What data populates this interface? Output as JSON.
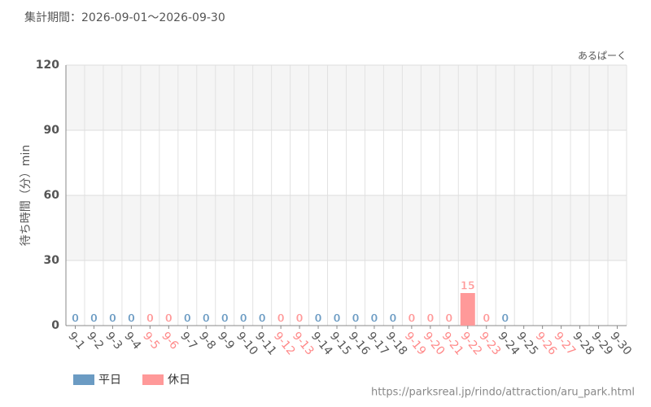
{
  "chart_data": {
    "type": "bar",
    "header": "集計期間：2026-09-01～2026-09-30",
    "source_name": "あるぱーく",
    "y_label": "待ち時間（分）min",
    "footer": "https://parksreal.jp/rindo/attraction/aru_park.html",
    "categories": [
      "9-1",
      "9-2",
      "9-3",
      "9-4",
      "9-5",
      "9-6",
      "9-7",
      "9-8",
      "9-9",
      "9-10",
      "9-11",
      "9-12",
      "9-13",
      "9-14",
      "9-15",
      "9-16",
      "9-17",
      "9-18",
      "9-19",
      "9-20",
      "9-21",
      "9-22",
      "9-23",
      "9-24",
      "9-25",
      "9-26",
      "9-27",
      "9-28",
      "9-29",
      "9-30"
    ],
    "category_label_colors": [
      "#555555",
      "#555555",
      "#555555",
      "#555555",
      "#ff8888",
      "#ff8888",
      "#555555",
      "#555555",
      "#555555",
      "#555555",
      "#555555",
      "#ff8888",
      "#ff8888",
      "#555555",
      "#555555",
      "#555555",
      "#555555",
      "#555555",
      "#ff8888",
      "#ff8888",
      "#ff8888",
      "#ff8888",
      "#ff8888",
      "#555555",
      "#555555",
      "#ff8888",
      "#ff8888",
      "#555555",
      "#555555",
      "#555555"
    ],
    "series": [
      {
        "name": "平日",
        "color": "#6b9bc3",
        "values": [
          0,
          0,
          0,
          0,
          null,
          null,
          0,
          0,
          0,
          0,
          0,
          null,
          null,
          0,
          0,
          0,
          0,
          0,
          null,
          null,
          null,
          null,
          null,
          0,
          null,
          null,
          null,
          null,
          null,
          null
        ]
      },
      {
        "name": "休日",
        "color": "#ff9999",
        "values": [
          null,
          null,
          null,
          null,
          0,
          0,
          null,
          null,
          null,
          null,
          null,
          0,
          0,
          null,
          null,
          null,
          null,
          null,
          0,
          0,
          0,
          15,
          0,
          null,
          null,
          null,
          null,
          null,
          null,
          null
        ]
      }
    ],
    "ylim": [
      0,
      120
    ],
    "yticks": [
      0,
      30,
      60,
      90,
      120
    ],
    "grid": true,
    "legend": "bottom-left"
  }
}
